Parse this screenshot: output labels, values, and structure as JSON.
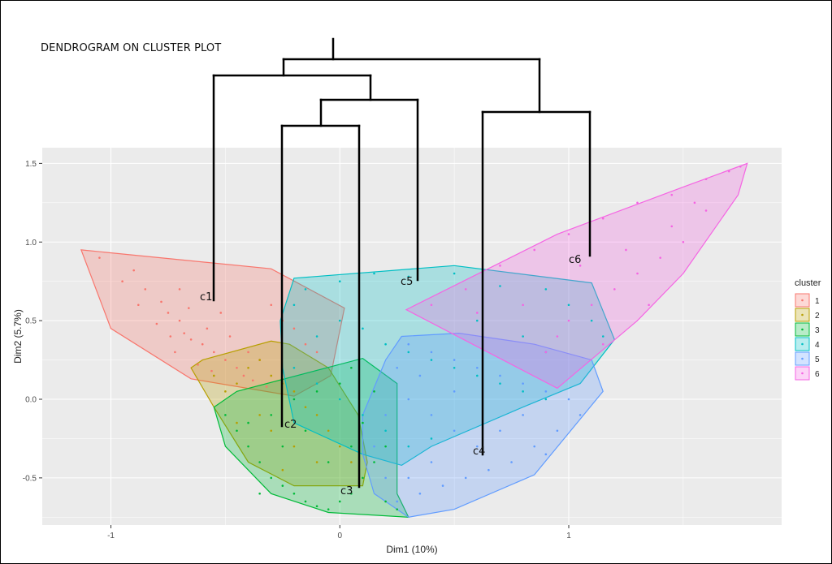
{
  "annotation_title": "DENDROGRAM ON CLUSTER PLOT",
  "chart_data": {
    "type": "scatter",
    "xlabel": "Dim1 (10%)",
    "ylabel": "Dim2 (5.7%)",
    "xlim": [
      -1.3,
      1.93
    ],
    "ylim": [
      -0.8,
      1.6
    ],
    "x_ticks": [
      -1,
      0,
      1
    ],
    "x_tick_labels": [
      "-1",
      "0",
      "1"
    ],
    "y_ticks": [
      -0.5,
      0.0,
      0.5,
      1.0,
      1.5
    ],
    "y_tick_labels": [
      "-0.5",
      "0.0",
      "0.5",
      "1.0",
      "1.5"
    ],
    "grid": true,
    "legend": {
      "title": "cluster",
      "position": "right",
      "entries": [
        "1",
        "2",
        "3",
        "4",
        "5",
        "6"
      ]
    },
    "series": [
      {
        "name": "1",
        "color": "#F8766D",
        "hull": [
          [
            -1.13,
            0.95
          ],
          [
            -0.3,
            0.83
          ],
          [
            0.02,
            0.58
          ],
          [
            -0.04,
            0.15
          ],
          [
            -0.1,
            0.1
          ],
          [
            -0.2,
            0.02
          ],
          [
            -0.65,
            0.13
          ],
          [
            -1.0,
            0.45
          ]
        ],
        "points": [
          [
            -1.05,
            0.9
          ],
          [
            -0.9,
            0.82
          ],
          [
            -0.85,
            0.7
          ],
          [
            -0.78,
            0.62
          ],
          [
            -0.75,
            0.55
          ],
          [
            -0.7,
            0.5
          ],
          [
            -0.68,
            0.42
          ],
          [
            -0.65,
            0.38
          ],
          [
            -0.6,
            0.35
          ],
          [
            -0.55,
            0.3
          ],
          [
            -0.5,
            0.25
          ],
          [
            -0.45,
            0.2
          ],
          [
            -0.42,
            0.15
          ],
          [
            -0.72,
            0.3
          ],
          [
            -0.62,
            0.22
          ],
          [
            -0.8,
            0.48
          ],
          [
            -0.95,
            0.75
          ],
          [
            -0.58,
            0.45
          ],
          [
            -0.52,
            0.55
          ],
          [
            -0.48,
            0.4
          ],
          [
            -0.4,
            0.3
          ],
          [
            -0.35,
            0.25
          ],
          [
            -0.3,
            0.6
          ],
          [
            -0.25,
            0.5
          ],
          [
            -0.2,
            0.45
          ],
          [
            -0.15,
            0.35
          ],
          [
            -0.1,
            0.3
          ],
          [
            -0.7,
            0.7
          ],
          [
            -0.88,
            0.6
          ],
          [
            -0.66,
            0.58
          ],
          [
            -0.74,
            0.4
          ],
          [
            -0.56,
            0.18
          ],
          [
            -0.38,
            0.12
          ],
          [
            -0.32,
            0.08
          ]
        ]
      },
      {
        "name": "2",
        "color": "#B79F00",
        "hull": [
          [
            -0.65,
            0.2
          ],
          [
            -0.6,
            0.25
          ],
          [
            -0.3,
            0.37
          ],
          [
            -0.22,
            0.35
          ],
          [
            -0.05,
            0.2
          ],
          [
            0.08,
            -0.1
          ],
          [
            0.12,
            -0.4
          ],
          [
            0.1,
            -0.55
          ],
          [
            -0.2,
            -0.55
          ],
          [
            -0.4,
            -0.4
          ],
          [
            -0.55,
            -0.05
          ]
        ],
        "points": [
          [
            -0.55,
            0.15
          ],
          [
            -0.5,
            0.05
          ],
          [
            -0.45,
            0.1
          ],
          [
            -0.4,
            0.2
          ],
          [
            -0.35,
            0.25
          ],
          [
            -0.3,
            0.15
          ],
          [
            -0.25,
            0.1
          ],
          [
            -0.2,
            0.05
          ],
          [
            -0.15,
            -0.05
          ],
          [
            -0.1,
            -0.1
          ],
          [
            -0.05,
            -0.2
          ],
          [
            0.0,
            -0.3
          ],
          [
            0.05,
            -0.4
          ],
          [
            -0.3,
            -0.2
          ],
          [
            -0.2,
            -0.3
          ],
          [
            -0.1,
            -0.4
          ],
          [
            -0.35,
            -0.1
          ],
          [
            -0.45,
            -0.15
          ],
          [
            -0.25,
            -0.45
          ]
        ]
      },
      {
        "name": "3",
        "color": "#00BA38",
        "hull": [
          [
            -0.55,
            -0.05
          ],
          [
            -0.45,
            0.05
          ],
          [
            0.1,
            0.26
          ],
          [
            0.25,
            0.1
          ],
          [
            0.25,
            -0.6
          ],
          [
            0.3,
            -0.75
          ],
          [
            -0.05,
            -0.72
          ],
          [
            -0.3,
            -0.6
          ],
          [
            -0.5,
            -0.3
          ]
        ],
        "points": [
          [
            -0.5,
            -0.1
          ],
          [
            -0.45,
            -0.2
          ],
          [
            -0.4,
            -0.3
          ],
          [
            -0.35,
            -0.4
          ],
          [
            -0.3,
            -0.5
          ],
          [
            -0.25,
            -0.55
          ],
          [
            -0.2,
            -0.6
          ],
          [
            -0.15,
            -0.65
          ],
          [
            -0.1,
            -0.68
          ],
          [
            -0.05,
            -0.7
          ],
          [
            0.0,
            -0.65
          ],
          [
            0.05,
            -0.6
          ],
          [
            0.1,
            -0.5
          ],
          [
            0.15,
            -0.4
          ],
          [
            0.2,
            -0.3
          ],
          [
            -0.3,
            -0.1
          ],
          [
            -0.2,
            0.0
          ],
          [
            -0.1,
            0.05
          ],
          [
            0.0,
            0.1
          ],
          [
            0.05,
            0.2
          ],
          [
            -0.25,
            -0.3
          ],
          [
            -0.15,
            -0.2
          ],
          [
            -0.05,
            -0.4
          ],
          [
            0.05,
            -0.3
          ],
          [
            0.1,
            -0.15
          ],
          [
            0.15,
            0.05
          ],
          [
            -0.35,
            -0.6
          ],
          [
            -0.4,
            -0.15
          ],
          [
            0.2,
            -0.65
          ],
          [
            0.25,
            -0.7
          ]
        ]
      },
      {
        "name": "4",
        "color": "#00BFC4",
        "hull": [
          [
            -0.2,
            0.77
          ],
          [
            0.5,
            0.85
          ],
          [
            1.1,
            0.74
          ],
          [
            1.2,
            0.38
          ],
          [
            1.05,
            0.1
          ],
          [
            0.8,
            -0.05
          ],
          [
            0.4,
            -0.3
          ],
          [
            0.27,
            -0.42
          ],
          [
            0.1,
            -0.35
          ],
          [
            -0.2,
            -0.15
          ],
          [
            -0.25,
            0.2
          ],
          [
            -0.26,
            0.5
          ]
        ],
        "points": [
          [
            -0.15,
            0.7
          ],
          [
            0.0,
            0.75
          ],
          [
            0.15,
            0.8
          ],
          [
            0.3,
            0.78
          ],
          [
            0.5,
            0.8
          ],
          [
            0.7,
            0.72
          ],
          [
            0.9,
            0.7
          ],
          [
            1.0,
            0.6
          ],
          [
            1.1,
            0.5
          ],
          [
            1.15,
            0.4
          ],
          [
            -0.1,
            0.4
          ],
          [
            0.0,
            0.5
          ],
          [
            0.1,
            0.45
          ],
          [
            0.2,
            0.35
          ],
          [
            0.3,
            0.3
          ],
          [
            0.4,
            0.25
          ],
          [
            0.5,
            0.2
          ],
          [
            0.6,
            0.15
          ],
          [
            0.7,
            0.1
          ],
          [
            0.8,
            0.05
          ],
          [
            0.9,
            0.0
          ],
          [
            -0.2,
            0.2
          ],
          [
            -0.1,
            0.1
          ],
          [
            0.0,
            0.0
          ],
          [
            0.1,
            -0.1
          ],
          [
            0.2,
            -0.2
          ],
          [
            0.3,
            -0.3
          ],
          [
            0.4,
            -0.25
          ],
          [
            0.8,
            0.4
          ],
          [
            0.6,
            0.5
          ],
          [
            -0.2,
            0.6
          ],
          [
            0.9,
            0.3
          ]
        ]
      },
      {
        "name": "5",
        "color": "#619CFF",
        "hull": [
          [
            0.27,
            0.4
          ],
          [
            0.52,
            0.42
          ],
          [
            0.85,
            0.35
          ],
          [
            1.1,
            0.25
          ],
          [
            1.15,
            0.05
          ],
          [
            0.85,
            -0.48
          ],
          [
            0.5,
            -0.7
          ],
          [
            0.3,
            -0.75
          ],
          [
            0.15,
            -0.6
          ],
          [
            0.1,
            -0.35
          ],
          [
            0.1,
            -0.1
          ],
          [
            0.2,
            0.25
          ]
        ],
        "points": [
          [
            0.3,
            0.35
          ],
          [
            0.4,
            0.3
          ],
          [
            0.5,
            0.25
          ],
          [
            0.6,
            0.2
          ],
          [
            0.7,
            0.15
          ],
          [
            0.8,
            0.1
          ],
          [
            0.9,
            0.05
          ],
          [
            1.0,
            0.0
          ],
          [
            1.05,
            -0.1
          ],
          [
            0.95,
            -0.2
          ],
          [
            0.85,
            -0.3
          ],
          [
            0.75,
            -0.4
          ],
          [
            0.65,
            -0.45
          ],
          [
            0.55,
            -0.5
          ],
          [
            0.45,
            -0.55
          ],
          [
            0.35,
            -0.6
          ],
          [
            0.25,
            -0.65
          ],
          [
            0.2,
            -0.5
          ],
          [
            0.15,
            -0.3
          ],
          [
            0.2,
            -0.1
          ],
          [
            0.3,
            0.0
          ],
          [
            0.4,
            -0.1
          ],
          [
            0.5,
            -0.2
          ],
          [
            0.6,
            -0.3
          ],
          [
            0.7,
            -0.2
          ],
          [
            0.8,
            -0.1
          ],
          [
            0.5,
            0.05
          ],
          [
            0.35,
            0.15
          ],
          [
            0.25,
            0.2
          ],
          [
            0.9,
            -0.35
          ],
          [
            0.4,
            -0.4
          ],
          [
            0.3,
            -0.5
          ]
        ]
      },
      {
        "name": "6",
        "color": "#F564E3",
        "hull": [
          [
            0.29,
            0.57
          ],
          [
            0.95,
            1.05
          ],
          [
            1.5,
            1.35
          ],
          [
            1.78,
            1.5
          ],
          [
            1.74,
            1.3
          ],
          [
            1.5,
            0.8
          ],
          [
            1.3,
            0.5
          ],
          [
            0.95,
            0.07
          ]
        ],
        "points": [
          [
            0.4,
            0.6
          ],
          [
            0.55,
            0.7
          ],
          [
            0.7,
            0.85
          ],
          [
            0.85,
            0.95
          ],
          [
            1.0,
            1.05
          ],
          [
            1.15,
            1.15
          ],
          [
            1.3,
            1.25
          ],
          [
            1.45,
            1.3
          ],
          [
            1.6,
            1.4
          ],
          [
            1.7,
            1.45
          ],
          [
            1.75,
            1.48
          ],
          [
            1.6,
            1.2
          ],
          [
            1.5,
            1.0
          ],
          [
            1.4,
            0.9
          ],
          [
            1.3,
            0.8
          ],
          [
            1.2,
            0.7
          ],
          [
            1.1,
            0.6
          ],
          [
            1.0,
            0.5
          ],
          [
            0.95,
            0.4
          ],
          [
            0.9,
            0.3
          ],
          [
            1.05,
            0.85
          ],
          [
            1.25,
            0.95
          ],
          [
            1.45,
            1.1
          ],
          [
            1.55,
            1.25
          ],
          [
            0.8,
            0.6
          ],
          [
            0.6,
            0.55
          ],
          [
            1.35,
            0.6
          ],
          [
            1.15,
            0.35
          ]
        ]
      }
    ],
    "dendrogram": {
      "leaves": [
        "c1",
        "c2",
        "c3",
        "c5",
        "c4",
        "c6"
      ]
    }
  }
}
